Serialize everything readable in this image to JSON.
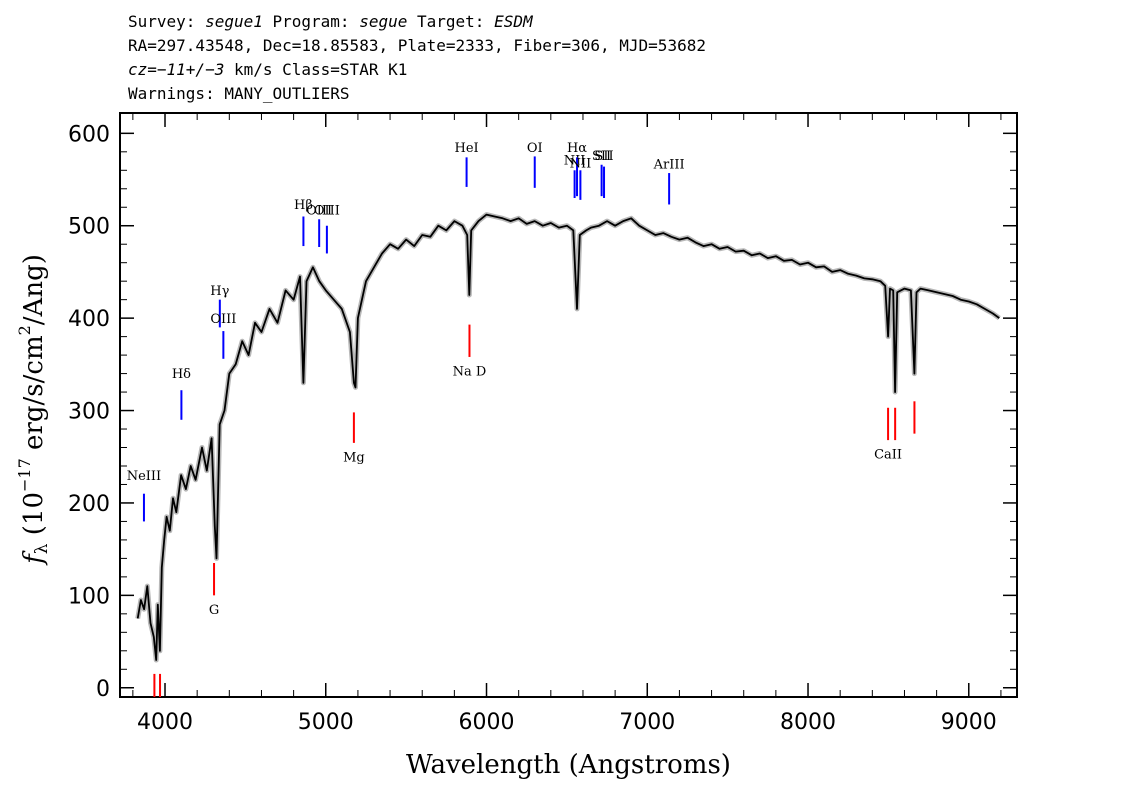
{
  "header": {
    "line1": {
      "survey_label": "Survey: ",
      "survey": "segue1",
      "program_label": " Program: ",
      "program": "segue",
      "target_label": " Target: ",
      "target": "ESDM"
    },
    "line2": "RA=297.43548, Dec=18.85583, Plate=2333, Fiber=306, MJD=53682",
    "line3": {
      "cz_label": "cz",
      "cz_value": "=−11+/−3",
      "cz_rest": " km/s Class=STAR K1"
    },
    "line4": "Warnings: MANY_OUTLIERS"
  },
  "chart_data": {
    "type": "line",
    "xlabel": "Wavelength (Angstroms)",
    "ylabel": {
      "f": "f",
      "lambda": "λ",
      "rest": " (10",
      "exp": "−17",
      "units": " erg/s/cm",
      "sq": "2",
      "tail": "/Ang)"
    },
    "xlim": [
      3720,
      9300
    ],
    "ylim": [
      -10,
      622
    ],
    "x_ticks": [
      4000,
      5000,
      6000,
      7000,
      8000,
      9000
    ],
    "y_ticks": [
      0,
      100,
      200,
      300,
      400,
      500,
      600
    ],
    "x_tick_labels": [
      "4000",
      "5000",
      "6000",
      "7000",
      "8000",
      "9000"
    ],
    "y_tick_labels": [
      "0",
      "100",
      "200",
      "300",
      "400",
      "500",
      "600"
    ],
    "grid": false,
    "series": [
      {
        "points": [
          [
            3830,
            75
          ],
          [
            3850,
            95
          ],
          [
            3870,
            85
          ],
          [
            3890,
            110
          ],
          [
            3910,
            70
          ],
          [
            3930,
            55
          ],
          [
            3945,
            30
          ],
          [
            3955,
            90
          ],
          [
            3968,
            40
          ],
          [
            3980,
            130
          ],
          [
            3995,
            160
          ],
          [
            4010,
            185
          ],
          [
            4030,
            170
          ],
          [
            4050,
            205
          ],
          [
            4070,
            190
          ],
          [
            4100,
            230
          ],
          [
            4130,
            215
          ],
          [
            4160,
            240
          ],
          [
            4190,
            225
          ],
          [
            4230,
            260
          ],
          [
            4260,
            235
          ],
          [
            4290,
            270
          ],
          [
            4310,
            175
          ],
          [
            4320,
            140
          ],
          [
            4340,
            285
          ],
          [
            4370,
            300
          ],
          [
            4400,
            340
          ],
          [
            4440,
            350
          ],
          [
            4480,
            375
          ],
          [
            4520,
            360
          ],
          [
            4560,
            395
          ],
          [
            4600,
            385
          ],
          [
            4650,
            410
          ],
          [
            4700,
            395
          ],
          [
            4750,
            430
          ],
          [
            4800,
            420
          ],
          [
            4840,
            445
          ],
          [
            4861,
            330
          ],
          [
            4880,
            440
          ],
          [
            4920,
            455
          ],
          [
            4960,
            440
          ],
          [
            5000,
            430
          ],
          [
            5050,
            420
          ],
          [
            5100,
            410
          ],
          [
            5150,
            385
          ],
          [
            5175,
            330
          ],
          [
            5185,
            325
          ],
          [
            5200,
            400
          ],
          [
            5250,
            440
          ],
          [
            5300,
            455
          ],
          [
            5350,
            470
          ],
          [
            5400,
            480
          ],
          [
            5450,
            475
          ],
          [
            5500,
            485
          ],
          [
            5550,
            478
          ],
          [
            5600,
            490
          ],
          [
            5650,
            488
          ],
          [
            5700,
            500
          ],
          [
            5750,
            495
          ],
          [
            5800,
            505
          ],
          [
            5850,
            500
          ],
          [
            5880,
            490
          ],
          [
            5893,
            425
          ],
          [
            5905,
            495
          ],
          [
            5950,
            505
          ],
          [
            6000,
            512
          ],
          [
            6050,
            510
          ],
          [
            6100,
            508
          ],
          [
            6150,
            505
          ],
          [
            6200,
            508
          ],
          [
            6250,
            502
          ],
          [
            6300,
            505
          ],
          [
            6350,
            500
          ],
          [
            6400,
            503
          ],
          [
            6450,
            498
          ],
          [
            6500,
            500
          ],
          [
            6540,
            495
          ],
          [
            6563,
            410
          ],
          [
            6580,
            490
          ],
          [
            6620,
            495
          ],
          [
            6650,
            498
          ],
          [
            6700,
            500
          ],
          [
            6750,
            505
          ],
          [
            6800,
            500
          ],
          [
            6850,
            505
          ],
          [
            6900,
            508
          ],
          [
            6950,
            500
          ],
          [
            7000,
            495
          ],
          [
            7050,
            490
          ],
          [
            7100,
            492
          ],
          [
            7150,
            488
          ],
          [
            7200,
            485
          ],
          [
            7250,
            487
          ],
          [
            7300,
            482
          ],
          [
            7350,
            478
          ],
          [
            7400,
            480
          ],
          [
            7450,
            475
          ],
          [
            7500,
            477
          ],
          [
            7550,
            472
          ],
          [
            7600,
            473
          ],
          [
            7650,
            468
          ],
          [
            7700,
            470
          ],
          [
            7750,
            465
          ],
          [
            7800,
            467
          ],
          [
            7850,
            462
          ],
          [
            7900,
            463
          ],
          [
            7950,
            458
          ],
          [
            8000,
            460
          ],
          [
            8050,
            455
          ],
          [
            8100,
            456
          ],
          [
            8150,
            450
          ],
          [
            8200,
            452
          ],
          [
            8250,
            448
          ],
          [
            8300,
            446
          ],
          [
            8350,
            443
          ],
          [
            8400,
            442
          ],
          [
            8450,
            440
          ],
          [
            8480,
            435
          ],
          [
            8498,
            380
          ],
          [
            8510,
            432
          ],
          [
            8530,
            430
          ],
          [
            8542,
            320
          ],
          [
            8555,
            428
          ],
          [
            8600,
            432
          ],
          [
            8640,
            430
          ],
          [
            8662,
            340
          ],
          [
            8675,
            428
          ],
          [
            8700,
            432
          ],
          [
            8750,
            430
          ],
          [
            8800,
            428
          ],
          [
            8850,
            426
          ],
          [
            8900,
            424
          ],
          [
            8950,
            420
          ],
          [
            9000,
            418
          ],
          [
            9050,
            415
          ],
          [
            9100,
            410
          ],
          [
            9150,
            405
          ],
          [
            9190,
            400
          ]
        ],
        "color": "#000000"
      }
    ],
    "emission_lines": [
      {
        "label": "NeIII",
        "x": 3869,
        "y1": 180,
        "y2": 210,
        "label_y": 225
      },
      {
        "label": "Hδ",
        "x": 4102,
        "y1": 290,
        "y2": 322,
        "label_y": 335
      },
      {
        "label": "Hγ",
        "x": 4341,
        "y1": 390,
        "y2": 420,
        "label_y": 425
      },
      {
        "label": "OIII",
        "x": 4363,
        "y1": 356,
        "y2": 386,
        "label_y": 395
      },
      {
        "label": "Hβ",
        "x": 4861,
        "y1": 478,
        "y2": 510,
        "label_y": 518
      },
      {
        "label": "OIII",
        "x": 4959,
        "y1": 477,
        "y2": 507,
        "label_y": 512
      },
      {
        "label": "OIII",
        "x": 5007,
        "y1": 470,
        "y2": 500,
        "label_y": 512
      },
      {
        "label": "HeI",
        "x": 5876,
        "y1": 542,
        "y2": 574,
        "label_y": 580
      },
      {
        "label": "OI",
        "x": 6300,
        "y1": 541,
        "y2": 575,
        "label_y": 580
      },
      {
        "label": "NII",
        "x": 6548,
        "y1": 530,
        "y2": 560,
        "label_y": 566
      },
      {
        "label": "Hα",
        "x": 6563,
        "y1": 532,
        "y2": 574,
        "label_y": 580
      },
      {
        "label": "NII",
        "x": 6584,
        "y1": 528,
        "y2": 560,
        "label_y": 563
      },
      {
        "label": "SII",
        "x": 6716,
        "y1": 532,
        "y2": 566,
        "label_y": 571
      },
      {
        "label": "SII",
        "x": 6731,
        "y1": 530,
        "y2": 564,
        "label_y": 571
      },
      {
        "label": "ArIII",
        "x": 7136,
        "y1": 523,
        "y2": 557,
        "label_y": 562
      }
    ],
    "absorption_lines": [
      {
        "label": "",
        "x": 3934,
        "y1": -10,
        "y2": 15,
        "label_y": null
      },
      {
        "label": "",
        "x": 3969,
        "y1": -10,
        "y2": 15,
        "label_y": null
      },
      {
        "label": "G",
        "x": 4305,
        "y1": 100,
        "y2": 135,
        "label_y": 80
      },
      {
        "label": "Mg",
        "x": 5175,
        "y1": 265,
        "y2": 298,
        "label_y": 245
      },
      {
        "label": "Na D",
        "x": 5894,
        "y1": 358,
        "y2": 393,
        "label_y": 338
      },
      {
        "label": "CaII",
        "x": 8498,
        "y1": 268,
        "y2": 303,
        "label_y": 248
      },
      {
        "label": "",
        "x": 8542,
        "y1": 268,
        "y2": 303,
        "label_y": null
      },
      {
        "label": "",
        "x": 8662,
        "y1": 275,
        "y2": 310,
        "label_y": null
      }
    ],
    "colors": {
      "spectrum": "#000000",
      "error_band": "#b8b8b8",
      "emission": "#0000ff",
      "absorption": "#ff0000"
    }
  }
}
